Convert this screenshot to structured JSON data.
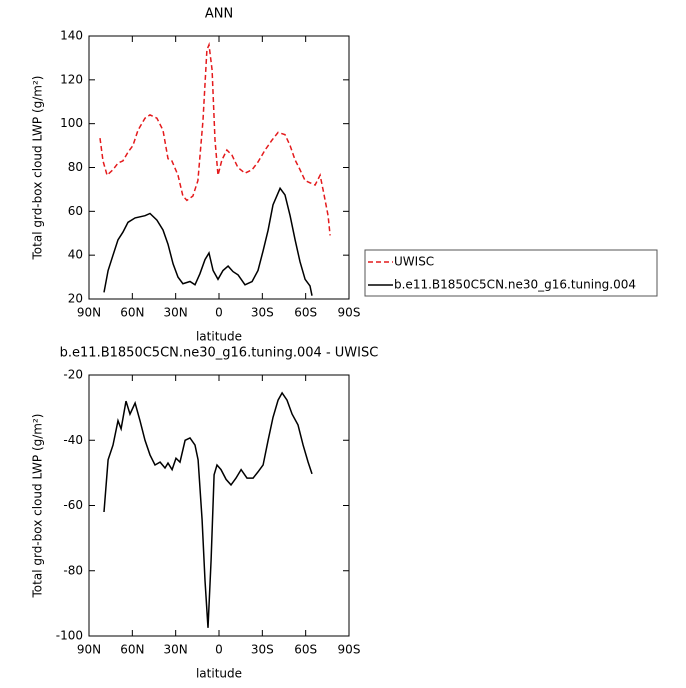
{
  "chart_data": [
    {
      "type": "line",
      "title": "ANN",
      "x_label": "latitude",
      "y_label": "Total grd-box cloud LWP (g/m²)",
      "xlim": [
        90,
        -90
      ],
      "ylim": [
        20,
        140
      ],
      "xticks": [
        {
          "value": 90,
          "label": "90N"
        },
        {
          "value": 60,
          "label": "60N"
        },
        {
          "value": 30,
          "label": "30N"
        },
        0,
        {
          "value": -30,
          "label": "30S"
        },
        {
          "value": -60,
          "label": "60S"
        },
        {
          "value": -90,
          "label": "90S"
        }
      ],
      "yticks": [
        20,
        40,
        60,
        80,
        100,
        120,
        140
      ],
      "series": [
        {
          "name": "UWISC",
          "color": "#e41a1c",
          "style": "dashed",
          "x": [
            82.4,
            80.3,
            77.5,
            73.4,
            69.9,
            66.5,
            63,
            59.6,
            56.1,
            51.2,
            47.8,
            43,
            38.8,
            35.3,
            32.6,
            28.4,
            25,
            22.2,
            18.1,
            14.6,
            11.1,
            8.4,
            6.9,
            4.8,
            2.8,
            0.7,
            -2,
            -5.5,
            -9,
            -13.1,
            -18,
            -22.9,
            -27,
            -31.9,
            -36.7,
            -40.9,
            -45.7,
            -49.2,
            -52.7,
            -56.1,
            -59.6,
            -63,
            -66.5,
            -70,
            -72,
            -75.5,
            -76.9
          ],
          "values": [
            93.4,
            83,
            76.5,
            79,
            82,
            83,
            87,
            90,
            97,
            102.5,
            104,
            102.5,
            97,
            84,
            83,
            76.5,
            67,
            65,
            67,
            74,
            101.6,
            133.6,
            136,
            124.5,
            92.5,
            76.5,
            83.4,
            88,
            85.6,
            80,
            77.4,
            79,
            82.5,
            88,
            92.5,
            96,
            95,
            90,
            83.4,
            79,
            74,
            73,
            72,
            76.5,
            70,
            58,
            49
          ]
        },
        {
          "name": "b.e11.B1850C5CN.ne30_g16.tuning.004",
          "color": "#000000",
          "style": "solid",
          "x": [
            79.6,
            76.8,
            73.4,
            69.9,
            66.5,
            63,
            58.1,
            51.2,
            47.8,
            43,
            38.8,
            35.3,
            31.8,
            28.4,
            25,
            20.1,
            16.6,
            13.2,
            9.7,
            6.9,
            4.1,
            0.7,
            -2.8,
            -6.3,
            -9.7,
            -13.2,
            -18,
            -22.9,
            -27,
            -30.5,
            -34,
            -37.4,
            -42.3,
            -45.7,
            -49.2,
            -52.7,
            -56.1,
            -59.6,
            -63,
            -64.4
          ],
          "values": [
            23,
            33,
            40,
            47,
            50.5,
            55,
            57,
            58,
            59,
            56,
            51.5,
            45,
            36,
            30,
            27,
            28,
            26.5,
            31.5,
            38,
            41,
            33,
            29,
            33,
            35,
            32.5,
            31,
            26.5,
            28,
            33,
            42,
            51.4,
            63,
            70.5,
            67.5,
            58,
            47,
            37,
            29,
            26,
            21.5
          ]
        }
      ]
    },
    {
      "type": "line",
      "title": "b.e11.B1850C5CN.ne30_g16.tuning.004 - UWISC",
      "x_label": "latitude",
      "y_label": "Total grd-box cloud LWP (g/m²)",
      "xlim": [
        90,
        -90
      ],
      "ylim": [
        -100,
        -20
      ],
      "xticks": [
        {
          "value": 90,
          "label": "90N"
        },
        {
          "value": 60,
          "label": "60N"
        },
        {
          "value": 30,
          "label": "30N"
        },
        0,
        {
          "value": -30,
          "label": "30S"
        },
        {
          "value": -60,
          "label": "60S"
        },
        {
          "value": -90,
          "label": "90S"
        }
      ],
      "yticks": [
        -100,
        -80,
        -60,
        -40,
        -20
      ],
      "series": [
        {
          "color": "#000000",
          "style": "solid",
          "x": [
            79.6,
            76.8,
            73.4,
            69.9,
            67.8,
            64.4,
            61.6,
            58.1,
            54.7,
            51.2,
            47.8,
            44.3,
            40.8,
            37.4,
            35.3,
            32.5,
            29.8,
            27,
            23.5,
            20.1,
            16.6,
            14.5,
            11.7,
            9.7,
            7.6,
            5.5,
            3.4,
            1.4,
            -1.4,
            -4.9,
            -8.3,
            -11.8,
            -15.3,
            -19.4,
            -23.6,
            -27,
            -30.5,
            -34,
            -37.4,
            -40.9,
            -43.7,
            -47.1,
            -50.6,
            -54.7,
            -58.2,
            -61.7,
            -64.4
          ],
          "values": [
            -62,
            -46,
            -41.5,
            -34,
            -36.5,
            -28,
            -32,
            -28.6,
            -34,
            -40,
            -44.5,
            -47.6,
            -46.7,
            -48.5,
            -47,
            -49,
            -45.5,
            -46.7,
            -40,
            -39.3,
            -41.5,
            -46,
            -64.4,
            -83,
            -97.5,
            -76.7,
            -50.6,
            -47.6,
            -49,
            -52,
            -53.7,
            -51.6,
            -49,
            -51.6,
            -51.6,
            -49.7,
            -47.6,
            -40,
            -33,
            -27.7,
            -25.5,
            -27.7,
            -32,
            -35.3,
            -41.5,
            -46.7,
            -50.3
          ]
        }
      ]
    }
  ]
}
